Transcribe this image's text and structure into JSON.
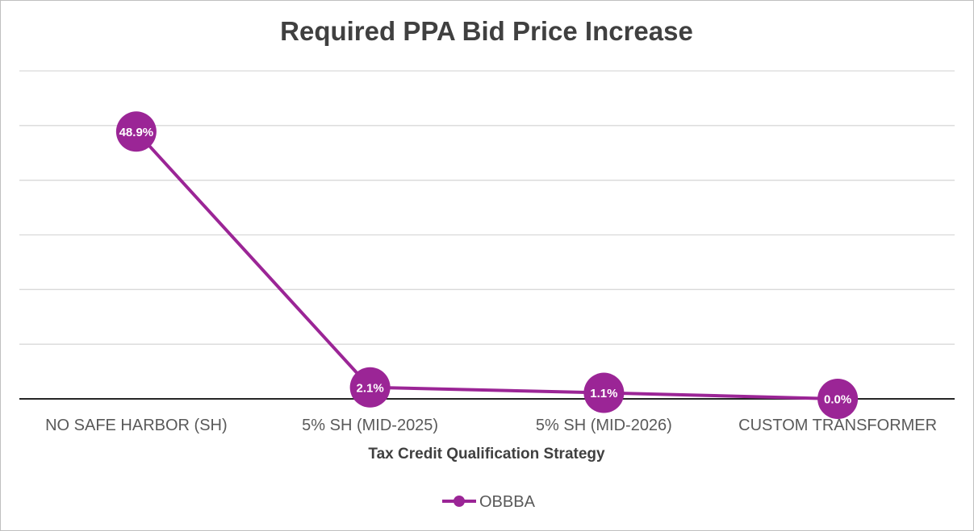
{
  "chart_data": {
    "type": "line",
    "title": "Required PPA Bid Price Increase",
    "xlabel": "Tax Credit Qualification Strategy",
    "ylabel": "",
    "categories": [
      "NO SAFE HARBOR (SH)",
      "5% SH (MID-2025)",
      "5% SH (MID-2026)",
      "CUSTOM TRANSFORMER"
    ],
    "series": [
      {
        "name": "OBBBA",
        "values": [
          48.9,
          2.1,
          1.1,
          0.0
        ],
        "labels": [
          "48.9%",
          "2.1%",
          "1.1%",
          "0.0%"
        ],
        "color": "#9b2596"
      }
    ],
    "ylim": [
      0,
      60
    ],
    "y_gridlines": [
      0,
      10,
      20,
      30,
      40,
      50,
      60
    ],
    "grid": true,
    "legend": "bottom"
  }
}
